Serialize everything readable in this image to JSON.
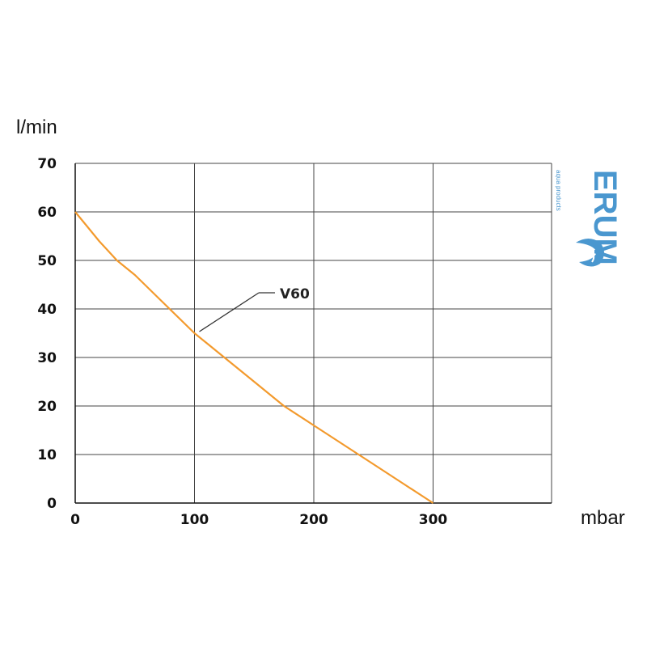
{
  "chart_data": {
    "type": "line",
    "ylabel": "l/min",
    "xlabel": "mbar",
    "xlim": [
      0,
      400
    ],
    "ylim": [
      0,
      70
    ],
    "x_ticks": [
      0,
      100,
      200,
      300
    ],
    "y_ticks": [
      0,
      10,
      20,
      30,
      40,
      50,
      60,
      70
    ],
    "grid": true,
    "series": [
      {
        "name": "V60",
        "color": "#f39a2d",
        "x": [
          0,
          10,
          20,
          35,
          50,
          75,
          100,
          125,
          150,
          175,
          200,
          225,
          250,
          275,
          300
        ],
        "y": [
          60,
          57,
          54,
          50,
          47,
          41,
          35,
          30,
          25,
          20,
          16,
          12,
          8,
          4,
          0
        ]
      }
    ],
    "annotation": {
      "text": "V60",
      "anchor_x": 100,
      "anchor_y": 35
    }
  },
  "logo": {
    "text": "ERUM",
    "subtext": "aqua products"
  }
}
